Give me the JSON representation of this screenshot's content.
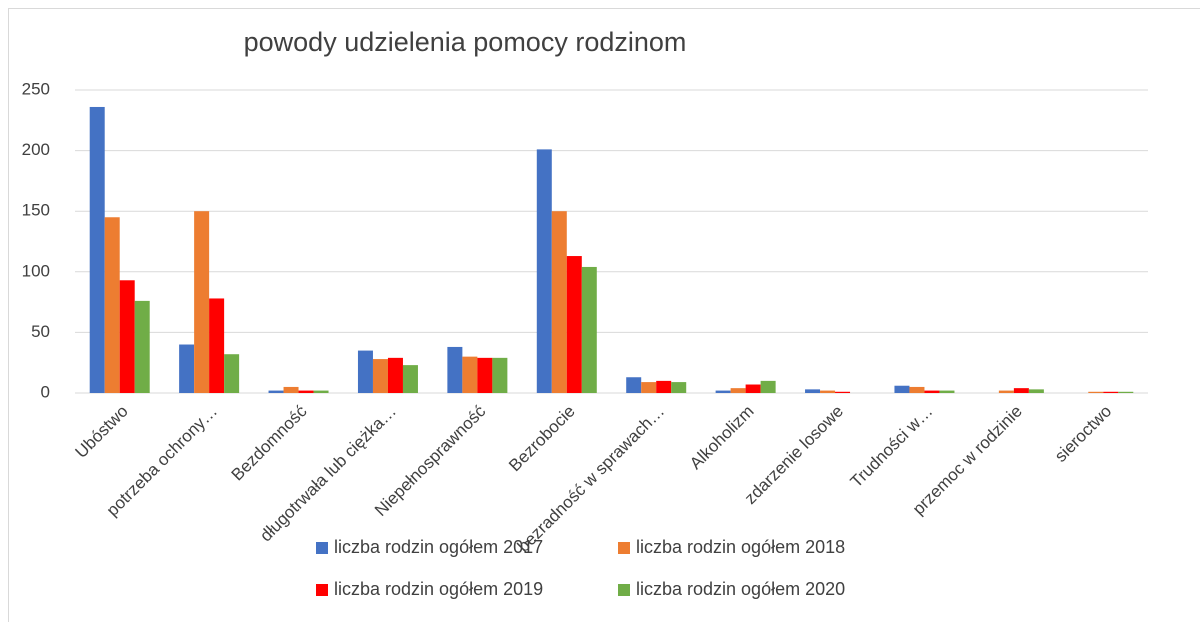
{
  "chart_data": {
    "type": "bar",
    "title": "powody udzielenia pomocy rodzinom",
    "categories": [
      "Ubóstwo",
      "potrzeba ochrony…",
      "Bezdomność",
      "długotrwała lub ciężka…",
      "Niepełnosprawność",
      "Bezrobocie",
      "bezradność w sprawach…",
      "Alkoholizm",
      "zdarzenie losowe",
      "Trudności w…",
      "przemoc w rodzinie",
      "sieroctwo"
    ],
    "series": [
      {
        "name": "liczba rodzin ogółem 2017",
        "color": "#4472c4",
        "values": [
          236,
          40,
          2,
          35,
          38,
          201,
          13,
          2,
          3,
          6,
          0,
          0
        ]
      },
      {
        "name": "liczba rodzin ogółem 2018",
        "color": "#ed7d31",
        "values": [
          145,
          150,
          5,
          28,
          30,
          150,
          9,
          4,
          2,
          5,
          2,
          1
        ]
      },
      {
        "name": "liczba rodzin ogółem 2019",
        "color": "#ff0000",
        "values": [
          93,
          78,
          2,
          29,
          29,
          113,
          10,
          7,
          1,
          2,
          4,
          1
        ]
      },
      {
        "name": "liczba rodzin ogółem 2020",
        "color": "#70ad47",
        "values": [
          76,
          32,
          2,
          23,
          29,
          104,
          9,
          10,
          0,
          2,
          3,
          1
        ]
      }
    ],
    "ylim": [
      0,
      250
    ],
    "yticks": [
      0,
      50,
      100,
      150,
      200,
      250
    ],
    "grid": true,
    "legend": "bottom"
  }
}
